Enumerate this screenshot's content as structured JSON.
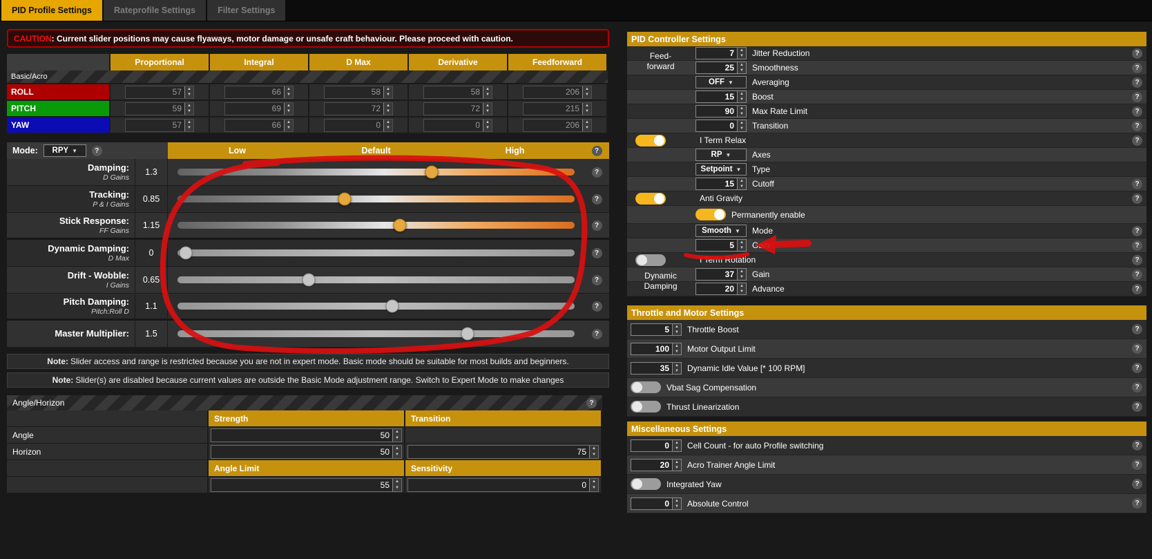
{
  "tabs": {
    "pid": "PID Profile Settings",
    "rate": "Rateprofile Settings",
    "filter": "Filter Settings"
  },
  "caution": {
    "label": "CAUTION",
    "text": ": Current slider positions may cause flyaways, motor damage or unsafe craft behaviour. Please proceed with caution."
  },
  "pid_table": {
    "headers": [
      "Proportional",
      "Integral",
      "D Max",
      "Derivative",
      "Feedforward"
    ],
    "section_label": "Basic/Acro",
    "rows": [
      {
        "axis": "ROLL",
        "values": [
          "57",
          "66",
          "58",
          "58",
          "206"
        ]
      },
      {
        "axis": "PITCH",
        "values": [
          "59",
          "69",
          "72",
          "72",
          "215"
        ]
      },
      {
        "axis": "YAW",
        "values": [
          "57",
          "66",
          "0",
          "0",
          "206"
        ]
      }
    ]
  },
  "sliders": {
    "mode_label": "Mode:",
    "mode_value": "RPY",
    "headers": [
      "Low",
      "Default",
      "High"
    ],
    "rows": [
      {
        "label": "Damping:",
        "sub": "D Gains",
        "value": "1.3",
        "pos": 64,
        "active": true
      },
      {
        "label": "Tracking:",
        "sub": "P & I Gains",
        "value": "0.85",
        "pos": 42,
        "active": true
      },
      {
        "label": "Stick Response:",
        "sub": "FF Gains",
        "value": "1.15",
        "pos": 56,
        "active": true
      },
      {
        "label": "Dynamic Damping:",
        "sub": "D Max",
        "value": "0",
        "pos": 2,
        "active": false
      },
      {
        "label": "Drift - Wobble:",
        "sub": "I Gains",
        "value": "0.65",
        "pos": 33,
        "active": false
      },
      {
        "label": "Pitch Damping:",
        "sub": "Pitch:Roll D",
        "value": "1.1",
        "pos": 54,
        "active": false
      },
      {
        "label": "Master Multiplier:",
        "sub": "",
        "value": "1.5",
        "pos": 73,
        "active": false
      }
    ]
  },
  "notes": {
    "n1_label": "Note:",
    "n1_text": " Slider access and range is restricted because you are not in expert mode. Basic mode should be suitable for most builds and beginners.",
    "n2_label": "Note:",
    "n2_text": " Slider(s) are disabled because current values are outside the Basic Mode adjustment range. Switch to Expert Mode to make changes"
  },
  "angle_horizon": {
    "title": "Angle/Horizon",
    "col_strength": "Strength",
    "col_transition": "Transition",
    "row_angle": "Angle",
    "row_horizon": "Horizon",
    "angle_strength": "50",
    "horizon_strength": "50",
    "horizon_transition": "75",
    "col_angle_limit": "Angle Limit",
    "col_sensitivity": "Sensitivity",
    "angle_limit": "55",
    "sensitivity": "0"
  },
  "pid_controller": {
    "title": "PID Controller Settings",
    "feedforward_label": "Feed-forward",
    "jitter": {
      "value": "7",
      "label": "Jitter Reduction"
    },
    "smoothness": {
      "value": "25",
      "label": "Smoothness"
    },
    "averaging": {
      "value": "OFF",
      "label": "Averaging"
    },
    "boost": {
      "value": "15",
      "label": "Boost"
    },
    "max_rate": {
      "value": "90",
      "label": "Max Rate Limit"
    },
    "transition": {
      "value": "0",
      "label": "Transition"
    },
    "iterm_relax": {
      "label": "I Term Relax",
      "enabled": true
    },
    "axes": {
      "value": "RP",
      "label": "Axes"
    },
    "type": {
      "value": "Setpoint",
      "label": "Type"
    },
    "cutoff": {
      "value": "15",
      "label": "Cutoff"
    },
    "anti_gravity": {
      "label": "Anti Gravity",
      "enabled": true
    },
    "permanently_enable": {
      "label": "Permanently enable",
      "enabled": true
    },
    "ag_mode": {
      "value": "Smooth",
      "label": "Mode"
    },
    "ag_gain": {
      "value": "5",
      "label": "Gain"
    },
    "iterm_rotation": {
      "label": "I Term Rotation",
      "enabled": false
    },
    "dynamic_damping_label": "Dynamic Damping",
    "dd_gain": {
      "value": "37",
      "label": "Gain"
    },
    "dd_advance": {
      "value": "20",
      "label": "Advance"
    }
  },
  "throttle_motor": {
    "title": "Throttle and Motor Settings",
    "throttle_boost": {
      "value": "5",
      "label": "Throttle Boost"
    },
    "motor_output_limit": {
      "value": "100",
      "label": "Motor Output Limit"
    },
    "dynamic_idle": {
      "value": "35",
      "label": "Dynamic Idle Value [* 100 RPM]"
    },
    "vbat_sag": {
      "label": "Vbat Sag Compensation",
      "enabled": false
    },
    "thrust_lin": {
      "label": "Thrust Linearization",
      "enabled": false
    }
  },
  "misc": {
    "title": "Miscellaneous Settings",
    "cell_count": {
      "value": "0",
      "label": "Cell Count - for auto Profile switching"
    },
    "acro_trainer": {
      "value": "20",
      "label": "Acro Trainer Angle Limit"
    },
    "integrated_yaw": {
      "label": "Integrated Yaw",
      "enabled": false
    },
    "absolute_control": {
      "value": "0",
      "label": "Absolute Control"
    }
  }
}
